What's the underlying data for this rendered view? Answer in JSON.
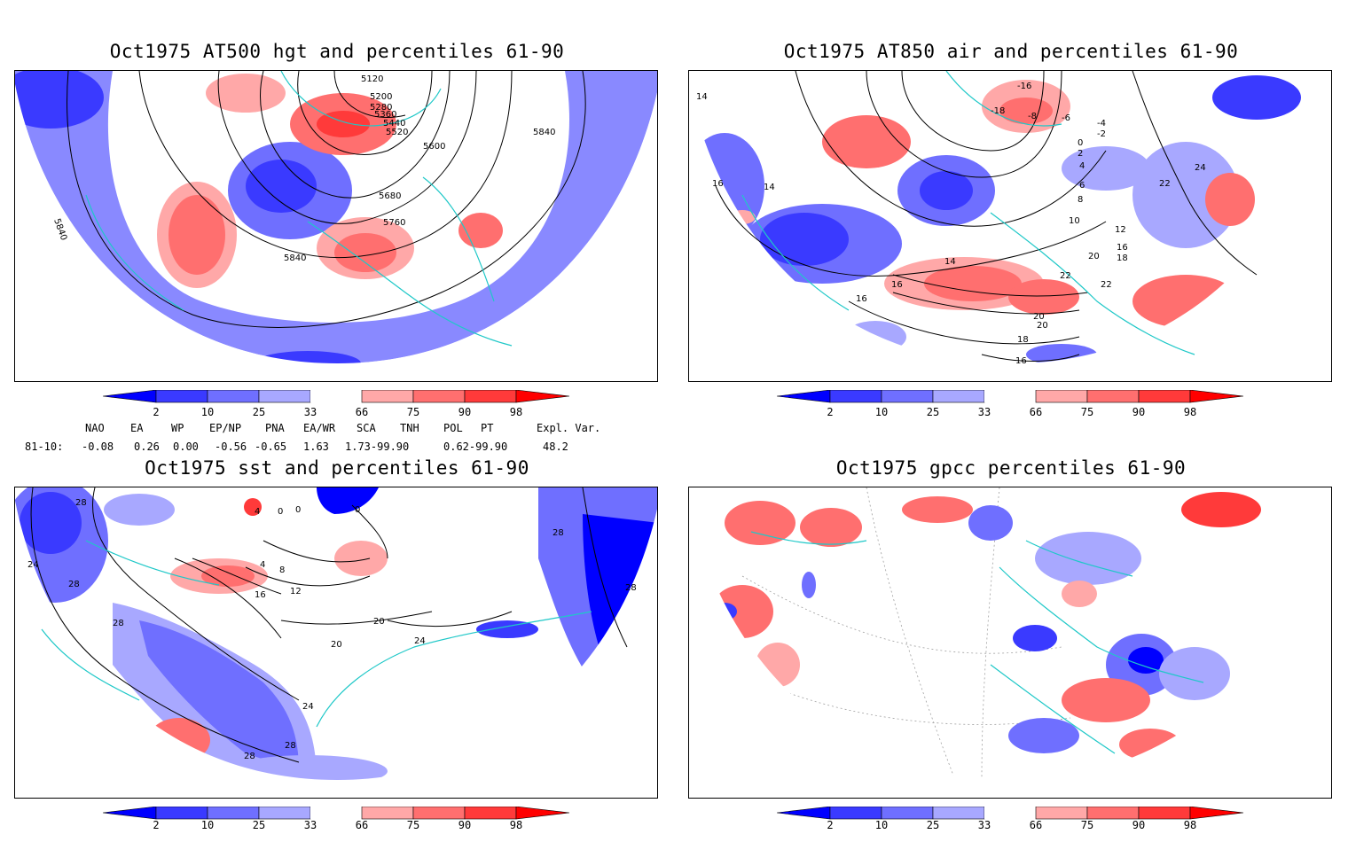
{
  "panels": [
    {
      "title": "Oct1975 AT500 hgt and percentiles 61-90",
      "contour_labels": [
        "5120",
        "5200",
        "5280",
        "5360",
        "5440",
        "5520",
        "5600",
        "5680",
        "5760",
        "5840",
        "5840",
        "5840"
      ]
    },
    {
      "title": "Oct1975 AT850 air and percentiles 61-90",
      "contour_labels": [
        "-16",
        "-18",
        "-8",
        "-6",
        "-4",
        "-2",
        "0",
        "2",
        "4",
        "6",
        "8",
        "10",
        "12",
        "14",
        "16",
        "18",
        "20",
        "22",
        "24",
        "14",
        "16",
        "16",
        "18",
        "20",
        "22",
        "16",
        "16",
        "22",
        "20",
        "14"
      ]
    },
    {
      "title": "Oct1975 sst and percentiles 61-90",
      "contour_labels": [
        "28",
        "24",
        "28",
        "28",
        "4",
        "0",
        "0",
        "0",
        "4",
        "8",
        "12",
        "16",
        "20",
        "24",
        "24",
        "28",
        "28",
        "20",
        "28",
        "28"
      ]
    },
    {
      "title": "Oct1975 gpcc percentiles 61-90",
      "contour_labels": []
    }
  ],
  "colorbar": {
    "labels": [
      "2",
      "10",
      "25",
      "33",
      "66",
      "75",
      "90",
      "98"
    ],
    "colors": {
      "below_2": "#0000ff",
      "2_10": "#3a3aff",
      "10_25": "#6f6fff",
      "25_33": "#a8a8ff",
      "33_66": "#ffffff",
      "66_75": "#ffa8a8",
      "75_90": "#ff6f6f",
      "90_98": "#ff3a3a",
      "above_98": "#ff0000"
    }
  },
  "indices": {
    "header": [
      "NAO",
      "EA",
      "WP",
      "EP/NP",
      "PNA",
      "EA/WR",
      "SCA",
      "TNH",
      "POL",
      "PT",
      "Expl. Var."
    ],
    "row_label": "81-10:",
    "values": [
      "-0.08",
      "0.26",
      "0.00",
      "-0.56",
      "-0.65",
      "1.63",
      "1.73-99.90",
      "0.62-99.90",
      "48.2"
    ]
  },
  "map_colors": {
    "coastline": "#1fc8c8",
    "contour": "#000000",
    "grid": "#a0a0a0"
  }
}
